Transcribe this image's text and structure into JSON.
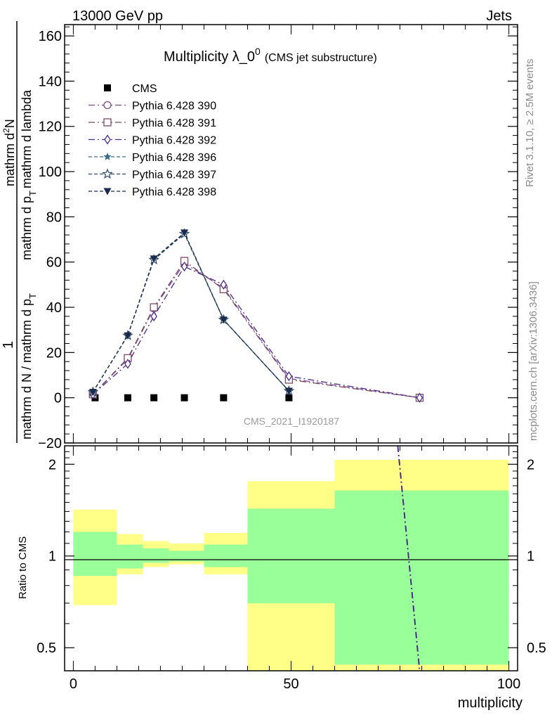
{
  "header": {
    "left": "13000 GeV pp",
    "right": "Jets"
  },
  "side_text": {
    "rivet": "Rivet 3.1.10, ≥ 2.5M events",
    "mcplots": "mcplots.cern.ch [arXiv:1306.3436]"
  },
  "watermark": "CMS_2021_I1920187",
  "chart_data": [
    {
      "type": "line",
      "title": "Multiplicity λ_0",
      "title_sup": "0",
      "subtitle": "(CMS jet substructure)",
      "ylabel": "1 / mathrm d N / mathrm d p_T mathrm d^2N / mathrm d p_T mathrm d lambda",
      "ylabel_parts": {
        "one": "1",
        "den1": "mathrm d N / mathrm d p",
        "den1_sub": "T",
        "den2": "mathrm d p",
        "den2_sub": "T",
        "den3": "mathrm d lambda",
        "num": "mathrm d",
        "num_sup": "2",
        "num2": "N"
      },
      "xlim": [
        -2,
        102
      ],
      "ylim": [
        -20,
        165
      ],
      "yticks": [
        "−20",
        "0",
        "20",
        "40",
        "60",
        "80",
        "100",
        "120",
        "140",
        "160"
      ],
      "grid": false,
      "legend_position": "top-left",
      "series": [
        {
          "name": "CMS",
          "marker": "filled-square",
          "color": "#000000",
          "dash": "none",
          "x": [
            5,
            12.5,
            18.5,
            25.5,
            34.5,
            49.5
          ],
          "y": [
            0,
            0,
            0,
            0,
            0,
            0
          ]
        },
        {
          "name": "Pythia 6.428 390",
          "marker": "open-circle",
          "color": "#7a4a8a",
          "dash": "9,4,2,4",
          "x": [
            4.5,
            12.5,
            18.5,
            25.5,
            34.5,
            49.5,
            79.5
          ],
          "y": [
            1.5,
            17,
            39.5,
            59.5,
            48.5,
            8.5,
            0
          ]
        },
        {
          "name": "Pythia 6.428 391",
          "marker": "open-square",
          "color": "#7a4a64",
          "dash": "9,4,2,4",
          "x": [
            4.5,
            12.5,
            18.5,
            25.5,
            34.5,
            49.5,
            79.5
          ],
          "y": [
            1.5,
            17.5,
            40,
            60.5,
            48,
            8,
            0
          ]
        },
        {
          "name": "Pythia 6.428 392",
          "marker": "open-diamond",
          "color": "#4a2a8a",
          "dash": "9,4,2,4",
          "x": [
            4.5,
            12.5,
            18.5,
            25.5,
            34.5,
            49.5,
            79.5
          ],
          "y": [
            1.5,
            15,
            36,
            58,
            50,
            9.5,
            0
          ]
        },
        {
          "name": "Pythia 6.428 396",
          "marker": "filled-star",
          "color": "#3a6a8a",
          "dash": "5,3",
          "x": [
            4.5,
            12.5,
            18.5,
            25.5,
            34.5,
            49.5
          ],
          "y": [
            2.5,
            27.5,
            61.5,
            72.5,
            34.5,
            3
          ]
        },
        {
          "name": "Pythia 6.428 397",
          "marker": "open-star",
          "color": "#2a4a6a",
          "dash": "5,3",
          "x": [
            4.5,
            12.5,
            18.5,
            25.5,
            34.5,
            49.5
          ],
          "y": [
            2.5,
            27.5,
            61,
            72.5,
            34.5,
            3
          ]
        },
        {
          "name": "Pythia 6.428 398",
          "marker": "filled-triangle-down",
          "color": "#1a2a4a",
          "dash": "5,3",
          "x": [
            4.5,
            12.5,
            18.5,
            25.5,
            34.5,
            49.5
          ],
          "y": [
            2.5,
            27.5,
            61.5,
            73,
            34.5,
            3
          ]
        }
      ]
    },
    {
      "type": "line",
      "ylabel": "Ratio to CMS",
      "xlabel": "multiplicity",
      "xlim": [
        -2,
        102
      ],
      "ylim": [
        0.42,
        2.3
      ],
      "log_y": true,
      "xticks": [
        "0",
        "50",
        "100"
      ],
      "yticks": [
        "0.5",
        "1",
        "2"
      ],
      "reference_line": 1,
      "bands": [
        {
          "x0": 0,
          "x1": 10,
          "yellow": [
            0.69,
            1.42
          ],
          "green": [
            0.86,
            1.2
          ]
        },
        {
          "x0": 10,
          "x1": 16,
          "yellow": [
            0.87,
            1.18
          ],
          "green": [
            0.91,
            1.09
          ]
        },
        {
          "x0": 16,
          "x1": 22,
          "yellow": [
            0.92,
            1.12
          ],
          "green": [
            0.95,
            1.06
          ]
        },
        {
          "x0": 22,
          "x1": 30,
          "yellow": [
            0.94,
            1.1
          ],
          "green": [
            0.96,
            1.04
          ]
        },
        {
          "x0": 30,
          "x1": 40,
          "yellow": [
            0.87,
            1.19
          ],
          "green": [
            0.92,
            1.09
          ]
        },
        {
          "x0": 40,
          "x1": 60,
          "yellow": [
            0.42,
            1.76
          ],
          "green": [
            0.7,
            1.43
          ]
        },
        {
          "x0": 60,
          "x1": 100,
          "yellow": [
            0.42,
            2.07
          ],
          "green": [
            0.44,
            1.64
          ]
        }
      ],
      "band_colors": {
        "yellow": "#ffff88",
        "green": "#99ff99"
      },
      "series": [
        {
          "name": "Pythia 6.428 392",
          "color": "#4a2a8a",
          "dash": "9,4,2,4",
          "x": [
            74.5,
            79.5
          ],
          "y": [
            2.3,
            0.42
          ]
        }
      ]
    }
  ]
}
